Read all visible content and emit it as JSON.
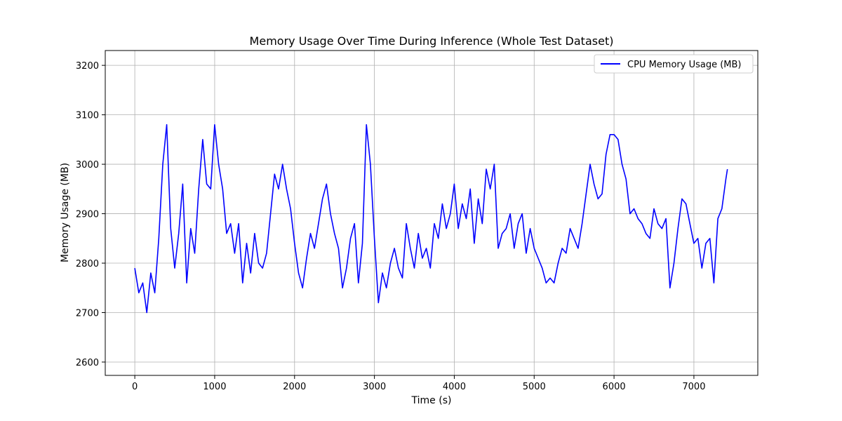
{
  "chart_data": {
    "type": "line",
    "title": "Memory Usage Over Time During Inference (Whole Test Dataset)",
    "xlabel": "Time (s)",
    "ylabel": "Memory Usage (MB)",
    "xlim": [
      -370,
      7800
    ],
    "ylim": [
      2573,
      3230
    ],
    "xticks": [
      0,
      1000,
      2000,
      3000,
      4000,
      5000,
      6000,
      7000
    ],
    "yticks": [
      2600,
      2700,
      2800,
      2900,
      3000,
      3100,
      3200
    ],
    "grid": true,
    "legend_position": "top-right",
    "series": [
      {
        "name": "CPU Memory Usage (MB)",
        "color": "#0000ff",
        "x": [
          0,
          50,
          100,
          150,
          200,
          250,
          300,
          350,
          400,
          450,
          500,
          550,
          600,
          650,
          700,
          750,
          800,
          850,
          900,
          950,
          1000,
          1050,
          1100,
          1150,
          1200,
          1250,
          1300,
          1350,
          1400,
          1450,
          1500,
          1550,
          1600,
          1650,
          1700,
          1750,
          1800,
          1850,
          1900,
          1950,
          2000,
          2050,
          2100,
          2150,
          2200,
          2250,
          2300,
          2350,
          2400,
          2450,
          2500,
          2550,
          2600,
          2650,
          2700,
          2750,
          2800,
          2850,
          2900,
          2950,
          3000,
          3050,
          3100,
          3150,
          3200,
          3250,
          3300,
          3350,
          3400,
          3450,
          3500,
          3550,
          3600,
          3650,
          3700,
          3750,
          3800,
          3850,
          3900,
          3950,
          4000,
          4050,
          4100,
          4150,
          4200,
          4250,
          4300,
          4350,
          4400,
          4450,
          4500,
          4550,
          4600,
          4650,
          4700,
          4750,
          4800,
          4850,
          4900,
          4950,
          5000,
          5050,
          5100,
          5150,
          5200,
          5250,
          5300,
          5350,
          5400,
          5450,
          5500,
          5550,
          5600,
          5650,
          5700,
          5750,
          5800,
          5850,
          5900,
          5950,
          6000,
          6050,
          6100,
          6150,
          6200,
          6250,
          6300,
          6350,
          6400,
          6450,
          6500,
          6550,
          6600,
          6650,
          6700,
          6750,
          6800,
          6850,
          6900,
          6950,
          7000,
          7050,
          7100,
          7150,
          7200,
          7250,
          7300,
          7350,
          7400,
          7420
        ],
        "values": [
          2790,
          2740,
          2760,
          2700,
          2780,
          2740,
          2850,
          3000,
          3080,
          2870,
          2790,
          2860,
          2960,
          2760,
          2870,
          2820,
          2950,
          3050,
          2960,
          2950,
          3080,
          3000,
          2950,
          2860,
          2880,
          2820,
          2880,
          2760,
          2840,
          2780,
          2860,
          2800,
          2790,
          2820,
          2900,
          2980,
          2950,
          3000,
          2950,
          2910,
          2840,
          2780,
          2750,
          2810,
          2860,
          2830,
          2880,
          2930,
          2960,
          2900,
          2860,
          2830,
          2750,
          2790,
          2850,
          2880,
          2760,
          2840,
          3080,
          3000,
          2850,
          2720,
          2780,
          2750,
          2800,
          2830,
          2790,
          2770,
          2880,
          2830,
          2790,
          2860,
          2810,
          2830,
          2790,
          2880,
          2850,
          2920,
          2870,
          2900,
          2960,
          2870,
          2920,
          2890,
          2950,
          2840,
          2930,
          2880,
          2990,
          2950,
          3000,
          2830,
          2860,
          2870,
          2900,
          2830,
          2880,
          2900,
          2820,
          2870,
          2830,
          2810,
          2790,
          2760,
          2770,
          2760,
          2800,
          2830,
          2820,
          2870,
          2850,
          2830,
          2880,
          2940,
          3000,
          2960,
          2930,
          2940,
          3020,
          3060,
          3060,
          3050,
          3000,
          2970,
          2900,
          2910,
          2890,
          2880,
          2860,
          2850,
          2910,
          2880,
          2870,
          2890,
          2750,
          2800,
          2870,
          2930,
          2920,
          2880,
          2840,
          2850,
          2790,
          2840,
          2850,
          2760,
          2890,
          2910,
          2970,
          2990
        ]
      }
    ]
  }
}
